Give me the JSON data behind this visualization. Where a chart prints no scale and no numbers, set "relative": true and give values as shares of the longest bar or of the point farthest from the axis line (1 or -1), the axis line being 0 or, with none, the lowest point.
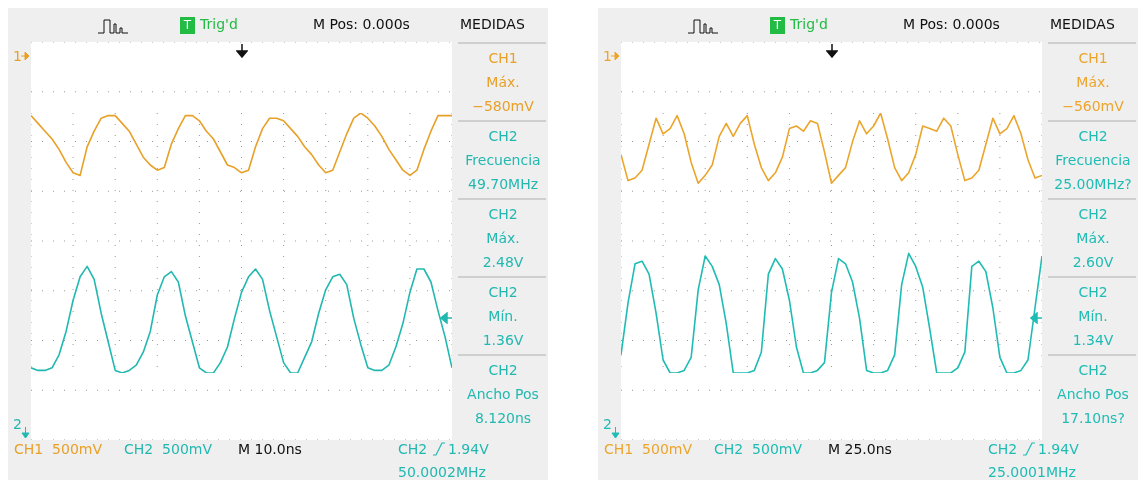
{
  "chart_data": [
    {
      "type": "line",
      "relative": true,
      "grid": true,
      "categories": [
        null,
        null,
        null,
        null,
        null,
        null,
        null,
        null,
        null,
        null,
        null,
        null,
        null,
        null,
        null,
        null,
        null,
        null,
        null,
        null,
        null,
        null,
        null,
        null,
        null,
        null,
        null,
        null,
        null,
        null,
        null,
        null,
        null,
        null,
        null,
        null,
        null,
        null,
        null,
        null,
        null,
        null,
        null,
        null,
        null,
        null,
        null,
        null,
        null,
        null,
        null,
        null,
        null,
        null,
        null,
        null,
        null,
        null,
        null,
        null,
        null
      ],
      "series": [
        {
          "color": "#e8a028",
          "values": [
            0.99,
            0.96,
            0.93,
            0.9,
            0.86,
            0.81,
            0.77,
            0.76,
            0.87,
            0.93,
            0.98,
            0.99,
            0.99,
            0.96,
            0.93,
            0.88,
            0.83,
            0.8,
            0.78,
            0.79,
            0.88,
            0.94,
            0.99,
            0.99,
            0.97,
            0.93,
            0.9,
            0.85,
            0.8,
            0.79,
            0.77,
            0.78,
            0.87,
            0.94,
            0.98,
            0.98,
            0.97,
            0.94,
            0.91,
            0.87,
            0.84,
            0.8,
            0.77,
            0.78,
            0.85,
            0.92,
            0.98,
            1,
            0.98,
            0.95,
            0.91,
            0.86,
            0.82,
            0.78,
            0.76,
            0.78,
            0.86,
            0.93,
            0.99,
            0.99,
            0.99
          ]
        },
        {
          "color": "#22b8b0",
          "values": [
            0.02,
            0.01,
            0.01,
            0.02,
            0.07,
            0.16,
            0.28,
            0.37,
            0.41,
            0.36,
            0.23,
            0.12,
            0.01,
            0,
            0.01,
            0.03,
            0.08,
            0.16,
            0.3,
            0.37,
            0.39,
            0.35,
            0.22,
            0.12,
            0.02,
            0,
            0,
            0.04,
            0.1,
            0.21,
            0.31,
            0.37,
            0.4,
            0.36,
            0.24,
            0.14,
            0.04,
            0,
            0,
            0.06,
            0.12,
            0.23,
            0.32,
            0.37,
            0.38,
            0.34,
            0.21,
            0.11,
            0.02,
            0.01,
            0.01,
            0.03,
            0.1,
            0.19,
            0.31,
            0.4,
            0.4,
            0.35,
            0.24,
            0.14,
            0.02
          ]
        }
      ],
      "annotations": [
        "T",
        "Trig'd",
        "M Pos: 0.000s",
        "MEDIDAS",
        "CH1\nMáx.\n−580mV",
        "CH2\nFrecuencia\n49.70MHz",
        "CH2\nMáx.\n2.48V",
        "CH2\nMín.\n1.36V",
        "CH2\nAncho Pos\n8.120ns",
        "1",
        "2",
        "CH1  500mV",
        "CH2  500mV",
        "M 10.0ns",
        "CH2",
        "1.94V",
        "50.0002MHz"
      ]
    },
    {
      "type": "line",
      "relative": true,
      "grid": true,
      "categories": [
        null,
        null,
        null,
        null,
        null,
        null,
        null,
        null,
        null,
        null,
        null,
        null,
        null,
        null,
        null,
        null,
        null,
        null,
        null,
        null,
        null,
        null,
        null,
        null,
        null,
        null,
        null,
        null,
        null,
        null,
        null,
        null,
        null,
        null,
        null,
        null,
        null,
        null,
        null,
        null,
        null,
        null,
        null,
        null,
        null,
        null,
        null,
        null,
        null,
        null,
        null,
        null,
        null,
        null,
        null,
        null,
        null,
        null,
        null,
        null,
        null
      ],
      "series": [
        {
          "color": "#eca52c",
          "values": [
            0.84,
            0.74,
            0.75,
            0.78,
            0.88,
            0.98,
            0.92,
            0.94,
            0.99,
            0.92,
            0.81,
            0.73,
            0.76,
            0.8,
            0.91,
            0.96,
            0.91,
            0.96,
            0.99,
            0.88,
            0.79,
            0.74,
            0.77,
            0.83,
            0.94,
            0.95,
            0.93,
            0.97,
            0.96,
            0.85,
            0.73,
            0.76,
            0.79,
            0.89,
            0.97,
            0.92,
            0.95,
            1,
            0.9,
            0.79,
            0.74,
            0.77,
            0.84,
            0.95,
            0.94,
            0.93,
            0.98,
            0.95,
            0.84,
            0.74,
            0.75,
            0.78,
            0.88,
            0.98,
            0.92,
            0.94,
            0.99,
            0.92,
            0.82,
            0.75,
            0.76
          ]
        },
        {
          "color": "#1fbcb4",
          "values": [
            0.07,
            0.27,
            0.42,
            0.43,
            0.38,
            0.23,
            0.05,
            0,
            0,
            0.01,
            0.06,
            0.32,
            0.45,
            0.41,
            0.34,
            0.19,
            0,
            0,
            0,
            0.01,
            0.08,
            0.38,
            0.44,
            0.4,
            0.28,
            0.1,
            0,
            0,
            0.01,
            0.04,
            0.31,
            0.44,
            0.42,
            0.35,
            0.21,
            0.01,
            0,
            0,
            0.01,
            0.07,
            0.34,
            0.46,
            0.41,
            0.33,
            0.17,
            0,
            0,
            0,
            0.02,
            0.08,
            0.41,
            0.43,
            0.39,
            0.25,
            0.06,
            0,
            0,
            0.01,
            0.05,
            0.25,
            0.45
          ]
        }
      ],
      "annotations": [
        "T",
        "Trig'd",
        "M Pos: 0.000s",
        "MEDIDAS",
        "CH1\nMáx.\n−560mV",
        "CH2\nFrecuencia\n25.00MHz?",
        "CH2\nMáx.\n2.60V",
        "CH2\nMín.\n1.34V",
        "CH2\nAncho Pos\n17.10ns?",
        "1",
        "2",
        "CH1  500mV",
        "CH2  500mV",
        "M 25.0ns",
        "CH2",
        "1.94V",
        "25.0001MHz"
      ]
    }
  ]
}
